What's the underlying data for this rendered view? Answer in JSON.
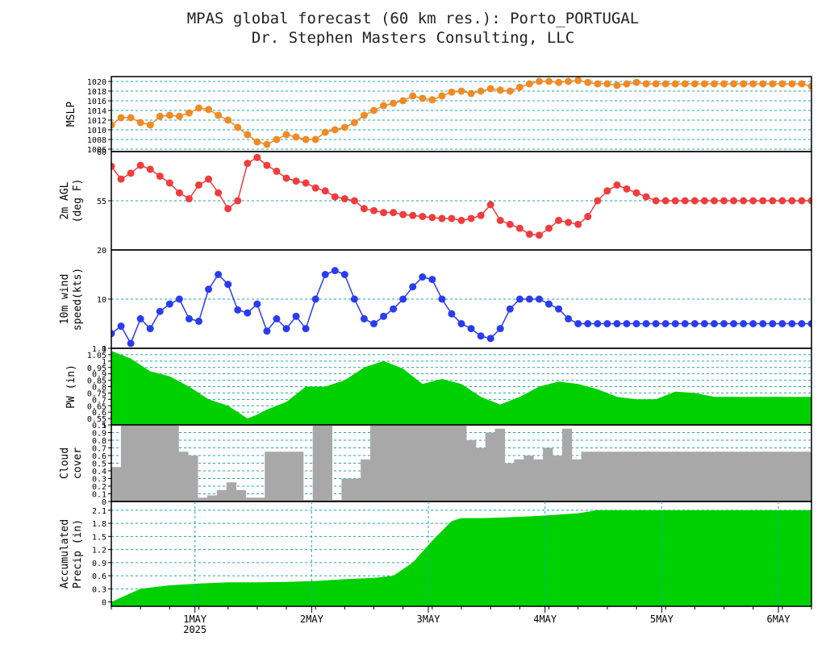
{
  "header": {
    "title": "MPAS global forecast (60 km res.): Porto_PORTUGAL",
    "subtitle": "Dr. Stephen Masters Consulting, LLC"
  },
  "colors": {
    "mslp": "#f08a24",
    "temp": "#f03c3c",
    "wind": "#2a3cf0",
    "pw": "#00d000",
    "cloud": "#a8a8a8",
    "precip": "#00d000",
    "grid": "#1aa6b8"
  },
  "chart_data": [
    {
      "type": "line",
      "ylabel": "MSLP",
      "ylim": [
        1005.5,
        1021
      ],
      "yticks": [
        "1006",
        "1008",
        "1010",
        "1012",
        "1014",
        "1016",
        "1018",
        "1020"
      ],
      "xlim": [
        0,
        72
      ],
      "x": [
        0,
        1,
        2,
        3,
        4,
        5,
        6,
        7,
        8,
        9,
        10,
        11,
        12,
        13,
        14,
        15,
        16,
        17,
        18,
        19,
        20,
        21,
        22,
        23,
        24,
        25,
        26,
        27,
        28,
        29,
        30,
        31,
        32,
        33,
        34,
        35,
        36,
        37,
        38,
        39,
        40,
        41,
        42,
        43,
        44,
        45,
        46,
        47,
        48,
        49,
        50,
        51,
        52,
        53,
        54,
        55,
        56,
        57,
        58,
        59,
        60,
        61,
        62,
        63,
        64,
        65,
        66,
        67,
        68,
        69,
        70,
        71,
        72
      ],
      "values": [
        1011,
        1012.5,
        1012.5,
        1011.5,
        1011,
        1012.8,
        1013,
        1012.8,
        1013.5,
        1014.5,
        1014.2,
        1013,
        1012,
        1010.5,
        1009,
        1007.5,
        1007,
        1008,
        1009,
        1008.5,
        1008,
        1008,
        1009.5,
        1010,
        1010.5,
        1011.5,
        1013,
        1014,
        1015,
        1015.5,
        1016,
        1017,
        1016.5,
        1016.2,
        1017,
        1017.8,
        1018,
        1017.5,
        1018,
        1018.5,
        1018.2,
        1018,
        1018.8,
        1019.5,
        1020,
        1020,
        1019.8,
        1020,
        1020.2,
        1019.8,
        1019.5,
        1019.5,
        1019.2,
        1019.5,
        1019.8,
        1019.5,
        1019.5,
        1019.5,
        1019.5,
        1019.5,
        1019.5,
        1019.5,
        1019.5,
        1019.5,
        1019.5,
        1019.5,
        1019.5,
        1019.5,
        1019.5,
        1019.5,
        1019.5,
        1019.5,
        1019
      ]
    },
    {
      "type": "line",
      "ylabel": "2m AGL (deg F)",
      "ylim": [
        50,
        60
      ],
      "yticks": [
        "55"
      ],
      "top_tick": "60",
      "xlim": [
        0,
        72
      ],
      "x": [
        0,
        1,
        2,
        3,
        4,
        5,
        6,
        7,
        8,
        9,
        10,
        11,
        12,
        13,
        14,
        15,
        16,
        17,
        18,
        19,
        20,
        21,
        22,
        23,
        24,
        25,
        26,
        27,
        28,
        29,
        30,
        31,
        32,
        33,
        34,
        35,
        36,
        37,
        38,
        39,
        40,
        41,
        42,
        43,
        44,
        45,
        46,
        47,
        48,
        49,
        50,
        51,
        52,
        53,
        54,
        55,
        56,
        57,
        58,
        59,
        60,
        61,
        62,
        63,
        64,
        65,
        66,
        67,
        68,
        69,
        70,
        71,
        72
      ],
      "values": [
        58.5,
        57.2,
        57.8,
        58.6,
        58.2,
        57.5,
        56.8,
        55.8,
        55.2,
        56.6,
        57.2,
        55.8,
        54.2,
        55.0,
        58.8,
        59.4,
        58.6,
        58.0,
        57.3,
        57.0,
        56.8,
        56.3,
        56.0,
        55.4,
        55.2,
        55.0,
        54.2,
        54.0,
        53.8,
        53.8,
        53.6,
        53.5,
        53.4,
        53.3,
        53.2,
        53.2,
        53.0,
        53.2,
        53.5,
        54.6,
        53.0,
        52.6,
        52.2,
        51.6,
        51.5,
        52.2,
        53.0,
        52.8,
        52.6,
        53.4,
        55.0,
        56.0,
        56.6,
        56.2,
        55.8,
        55.4,
        55.0,
        55.0,
        55.0,
        55.0,
        55.0,
        55.0,
        55.0,
        55.0,
        55.0,
        55.0,
        55.0,
        55.0,
        55.0,
        55.0,
        55.0,
        55.0,
        55.0
      ]
    },
    {
      "type": "line",
      "ylabel": "10m wind speed(kts)",
      "ylim": [
        0,
        20
      ],
      "yticks": [
        "0",
        "10"
      ],
      "top_tick": "20",
      "xlim": [
        0,
        72
      ],
      "x": [
        0,
        1,
        2,
        3,
        4,
        5,
        6,
        7,
        8,
        9,
        10,
        11,
        12,
        13,
        14,
        15,
        16,
        17,
        18,
        19,
        20,
        21,
        22,
        23,
        24,
        25,
        26,
        27,
        28,
        29,
        30,
        31,
        32,
        33,
        34,
        35,
        36,
        37,
        38,
        39,
        40,
        41,
        42,
        43,
        44,
        45,
        46,
        47,
        48,
        49,
        50,
        51,
        52,
        53,
        54,
        55,
        56,
        57,
        58,
        59,
        60,
        61,
        62,
        63,
        64,
        65,
        66,
        67,
        68,
        69,
        70,
        71,
        72
      ],
      "values": [
        3,
        4.5,
        1,
        6,
        4,
        7.5,
        9,
        10,
        6,
        5.5,
        12,
        15,
        13,
        7.8,
        7.2,
        9,
        3.5,
        6,
        4,
        6.5,
        4,
        10,
        15,
        15.8,
        15,
        10,
        6,
        5,
        6.5,
        8,
        10,
        12.5,
        14.5,
        14,
        10,
        7,
        5,
        4,
        2.5,
        2,
        4,
        8,
        10,
        10,
        10,
        9,
        8,
        6,
        5,
        5,
        5,
        5,
        5,
        5,
        5,
        5,
        5,
        5,
        5,
        5,
        5,
        5,
        5,
        5,
        5,
        5,
        5,
        5,
        5,
        5,
        5,
        5,
        5
      ]
    },
    {
      "type": "area",
      "ylabel": "PW (in)",
      "ylim": [
        0.5,
        1.1
      ],
      "yticks": [
        "0.5",
        "0.55",
        "0.6",
        "0.65",
        "0.7",
        "0.75",
        "0.8",
        "0.85",
        "0.9",
        "0.95",
        "1",
        "1.05",
        "1.1"
      ],
      "xlim": [
        0,
        72
      ],
      "x": [
        0,
        2,
        4,
        6,
        8,
        10,
        12,
        14,
        15,
        16,
        18,
        20,
        22,
        24,
        26,
        28,
        30,
        32,
        34,
        36,
        38,
        40,
        42,
        44,
        46,
        48,
        50,
        52,
        54,
        56,
        58,
        60,
        62,
        64,
        66,
        68,
        70,
        72
      ],
      "values": [
        1.08,
        1.02,
        0.92,
        0.88,
        0.8,
        0.7,
        0.65,
        0.55,
        0.58,
        0.62,
        0.68,
        0.8,
        0.8,
        0.85,
        0.95,
        1.0,
        0.94,
        0.82,
        0.86,
        0.82,
        0.72,
        0.66,
        0.72,
        0.8,
        0.84,
        0.82,
        0.78,
        0.72,
        0.7,
        0.7,
        0.76,
        0.75,
        0.72,
        0.72,
        0.72,
        0.72,
        0.72,
        0.72
      ]
    },
    {
      "type": "bar",
      "ylabel": "Cloud cover",
      "ylim": [
        0,
        1.0
      ],
      "yticks": [
        "0",
        "0.1",
        "0.2",
        "0.3",
        "0.4",
        "0.5",
        "0.6",
        "0.7",
        "0.8",
        "0.9"
      ],
      "top_tick": "1",
      "xlim": [
        0,
        72
      ],
      "x": [
        0,
        1,
        2,
        3,
        4,
        5,
        6,
        7,
        8,
        9,
        10,
        11,
        12,
        13,
        14,
        15,
        16,
        17,
        18,
        19,
        20,
        21,
        22,
        23,
        24,
        25,
        26,
        27,
        28,
        29,
        30,
        31,
        32,
        33,
        34,
        35,
        36,
        37,
        38,
        39,
        40,
        41,
        42,
        43,
        44,
        45,
        46,
        47,
        48,
        49,
        50,
        51,
        52,
        53,
        54,
        55,
        56,
        57,
        58,
        59,
        60,
        61,
        62,
        63,
        64,
        65,
        66,
        67,
        68,
        69,
        70,
        71,
        72
      ],
      "values": [
        0.45,
        1,
        1,
        1,
        1,
        1,
        1,
        0.65,
        0.6,
        0.05,
        0.08,
        0.15,
        0.25,
        0.15,
        0.05,
        0.05,
        0.65,
        0.65,
        0.65,
        0.65,
        0.02,
        1,
        1,
        0.02,
        0.3,
        0.3,
        0.55,
        1,
        1,
        1,
        1,
        1,
        1,
        1,
        1,
        1,
        1,
        0.8,
        0.7,
        0.9,
        0.95,
        0.5,
        0.55,
        0.6,
        0.55,
        0.7,
        0.6,
        0.95,
        0.55,
        0.65,
        0.65,
        0.65,
        0.65,
        0.65,
        0.65,
        0.65,
        0.65,
        0.65,
        0.65,
        0.65,
        0.65,
        0.65,
        0.65,
        0.65,
        0.65,
        0.65,
        0.65,
        0.65,
        0.65,
        0.65,
        0.65,
        0.65,
        0.65
      ]
    },
    {
      "type": "area",
      "ylabel": "Accumulated Precip (in)",
      "ylim": [
        -0.1,
        2.3
      ],
      "yticks": [
        "0",
        "0.3",
        "0.6",
        "0.9",
        "1.2",
        "1.5",
        "1.8",
        "2.1"
      ],
      "xlim": [
        0,
        72
      ],
      "x": [
        0,
        3,
        6,
        9,
        12,
        15,
        18,
        21,
        24,
        27,
        29,
        31,
        33,
        35,
        36,
        38,
        40,
        42,
        44,
        46,
        48,
        50,
        52,
        54,
        56,
        58,
        60,
        62,
        64,
        66,
        68,
        70,
        72
      ],
      "values": [
        0,
        0.3,
        0.38,
        0.42,
        0.45,
        0.45,
        0.46,
        0.48,
        0.52,
        0.55,
        0.6,
        0.9,
        1.4,
        1.85,
        1.92,
        1.92,
        1.93,
        1.95,
        1.97,
        2.0,
        2.03,
        2.1,
        2.1,
        2.1,
        2.1,
        2.1,
        2.1,
        2.1,
        2.1,
        2.1,
        2.1,
        2.1,
        2.1
      ]
    }
  ],
  "x_axis": {
    "ticks": [
      {
        "x": 8.6,
        "label": "1MAY",
        "sublabel": "2025"
      },
      {
        "x": 20.6,
        "label": "2MAY",
        "sublabel": ""
      },
      {
        "x": 32.6,
        "label": "3MAY",
        "sublabel": ""
      },
      {
        "x": 44.6,
        "label": "4MAY",
        "sublabel": ""
      },
      {
        "x": 56.6,
        "label": "5MAY",
        "sublabel": ""
      },
      {
        "x": 68.6,
        "label": "6MAY",
        "sublabel": ""
      }
    ]
  }
}
